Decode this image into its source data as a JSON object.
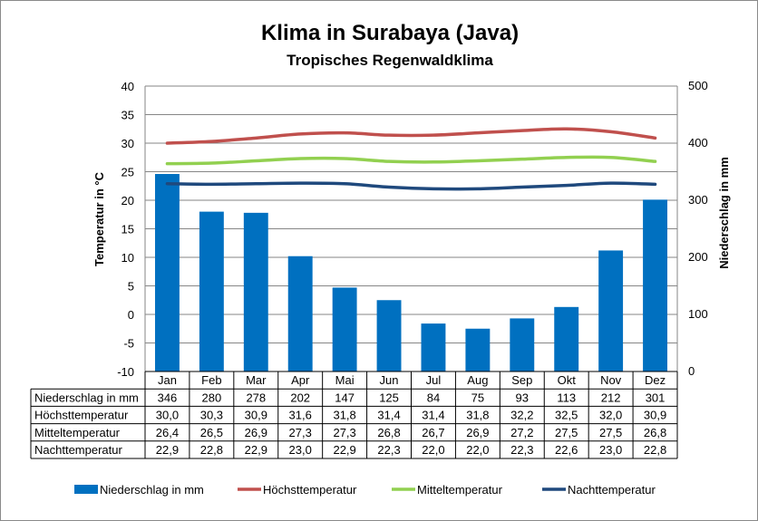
{
  "chart_data": {
    "type": "bar",
    "title": "Klima in Surabaya (Java)",
    "subtitle": "Tropisches Regenwaldklima",
    "ylabel": "Temperatur in °C",
    "y2label": "Niederschlag in mm",
    "ylim": [
      -10,
      40
    ],
    "y2lim": [
      0,
      500
    ],
    "yticks": [
      "40",
      "35",
      "30",
      "25",
      "20",
      "15",
      "10",
      "5",
      "0",
      "-5",
      "-10"
    ],
    "y2ticks": [
      "500",
      "400",
      "300",
      "200",
      "100",
      "0"
    ],
    "grid": true,
    "legend_position": "bottom",
    "categories": [
      "Jan",
      "Feb",
      "Mar",
      "Apr",
      "Mai",
      "Jun",
      "Jul",
      "Aug",
      "Sep",
      "Okt",
      "Nov",
      "Dez"
    ],
    "series": [
      {
        "name": "Niederschlag in mm",
        "type": "bar",
        "axis": "right",
        "color": "#0070C0",
        "values": [
          346,
          280,
          278,
          202,
          147,
          125,
          84,
          75,
          93,
          113,
          212,
          301
        ],
        "labels": [
          "346",
          "280",
          "278",
          "202",
          "147",
          "125",
          "84",
          "75",
          "93",
          "113",
          "212",
          "301"
        ]
      },
      {
        "name": "Höchsttemperatur",
        "type": "line",
        "axis": "left",
        "color": "#C0504D",
        "values": [
          30.0,
          30.3,
          30.9,
          31.6,
          31.8,
          31.4,
          31.4,
          31.8,
          32.2,
          32.5,
          32.0,
          30.9
        ],
        "labels": [
          "30,0",
          "30,3",
          "30,9",
          "31,6",
          "31,8",
          "31,4",
          "31,4",
          "31,8",
          "32,2",
          "32,5",
          "32,0",
          "30,9"
        ]
      },
      {
        "name": "Mitteltemperatur",
        "type": "line",
        "axis": "left",
        "color": "#92D050",
        "values": [
          26.4,
          26.5,
          26.9,
          27.3,
          27.3,
          26.8,
          26.7,
          26.9,
          27.2,
          27.5,
          27.5,
          26.8
        ],
        "labels": [
          "26,4",
          "26,5",
          "26,9",
          "27,3",
          "27,3",
          "26,8",
          "26,7",
          "26,9",
          "27,2",
          "27,5",
          "27,5",
          "26,8"
        ]
      },
      {
        "name": "Nachttemperatur",
        "type": "line",
        "axis": "left",
        "color": "#1F497D",
        "values": [
          22.9,
          22.8,
          22.9,
          23.0,
          22.9,
          22.3,
          22.0,
          22.0,
          22.3,
          22.6,
          23.0,
          22.8
        ],
        "labels": [
          "22,9",
          "22,8",
          "22,9",
          "23,0",
          "22,9",
          "22,3",
          "22,0",
          "22,0",
          "22,3",
          "22,6",
          "23,0",
          "22,8"
        ]
      }
    ]
  }
}
